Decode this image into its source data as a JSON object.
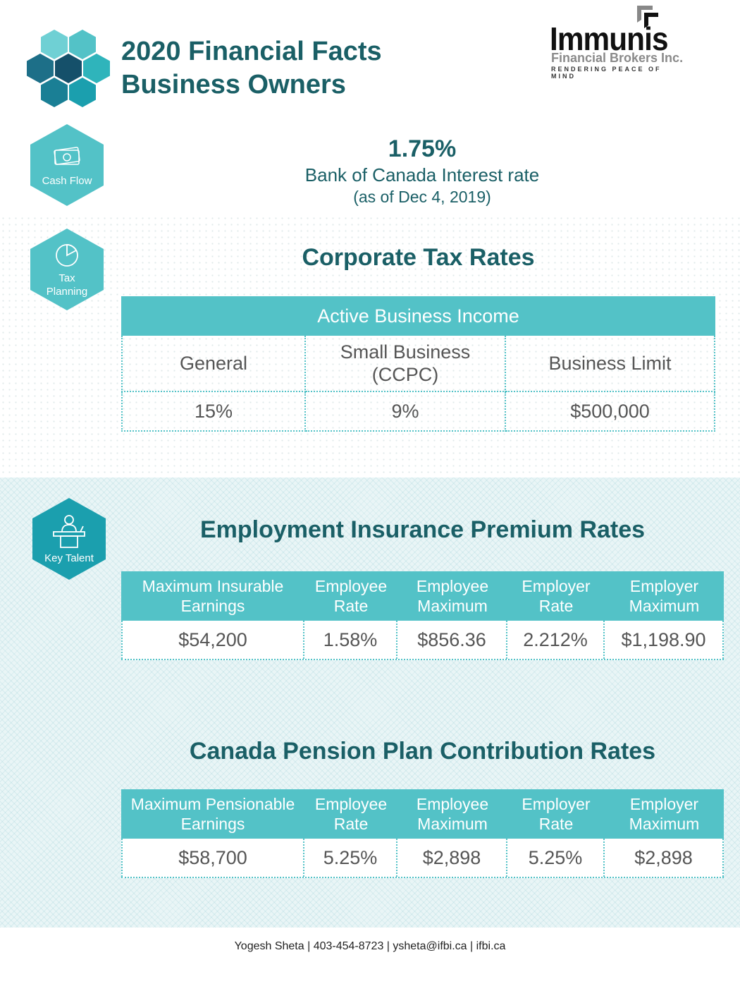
{
  "header": {
    "title_line1": "2020 Financial Facts",
    "title_line2": "Business Owners"
  },
  "logo": {
    "name": "Immunis",
    "subtitle": "Financial Brokers Inc.",
    "tagline": "RENDERING PEACE OF MIND"
  },
  "side_icons": {
    "cash_flow": "Cash Flow",
    "tax_planning_line1": "Tax",
    "tax_planning_line2": "Planning",
    "key_talent": "Key Talent"
  },
  "interest": {
    "value": "1.75%",
    "label": "Bank of Canada Interest rate",
    "date": "(as of Dec 4, 2019)"
  },
  "corporate": {
    "title": "Corporate Tax Rates",
    "header": "Active Business Income",
    "columns": [
      "General",
      "Small Business (CCPC)",
      "Business Limit"
    ],
    "values": [
      "15%",
      "9%",
      "$500,000"
    ]
  },
  "ei": {
    "title": "Employment Insurance Premium Rates",
    "columns": [
      "Maximum Insurable Earnings",
      "Employee Rate",
      "Employee Maximum",
      "Employer Rate",
      "Employer Maximum"
    ],
    "values": [
      "$54,200",
      "1.58%",
      "$856.36",
      "2.212%",
      "$1,198.90"
    ]
  },
  "cpp": {
    "title": "Canada Pension Plan Contribution Rates",
    "columns": [
      "Maximum Pensionable Earnings",
      "Employee Rate",
      "Employee Maximum",
      "Employer Rate",
      "Employer Maximum"
    ],
    "values": [
      "$58,700",
      "5.25%",
      "$2,898",
      "5.25%",
      "$2,898"
    ]
  },
  "footer": {
    "contact": "Yogesh Sheta | 403-454-8723 | ysheta@ifbi.ca | ifbi.ca"
  },
  "colors": {
    "accent": "#53c2c7",
    "dark_teal": "#1a5f66",
    "navy": "#1d6f88"
  }
}
